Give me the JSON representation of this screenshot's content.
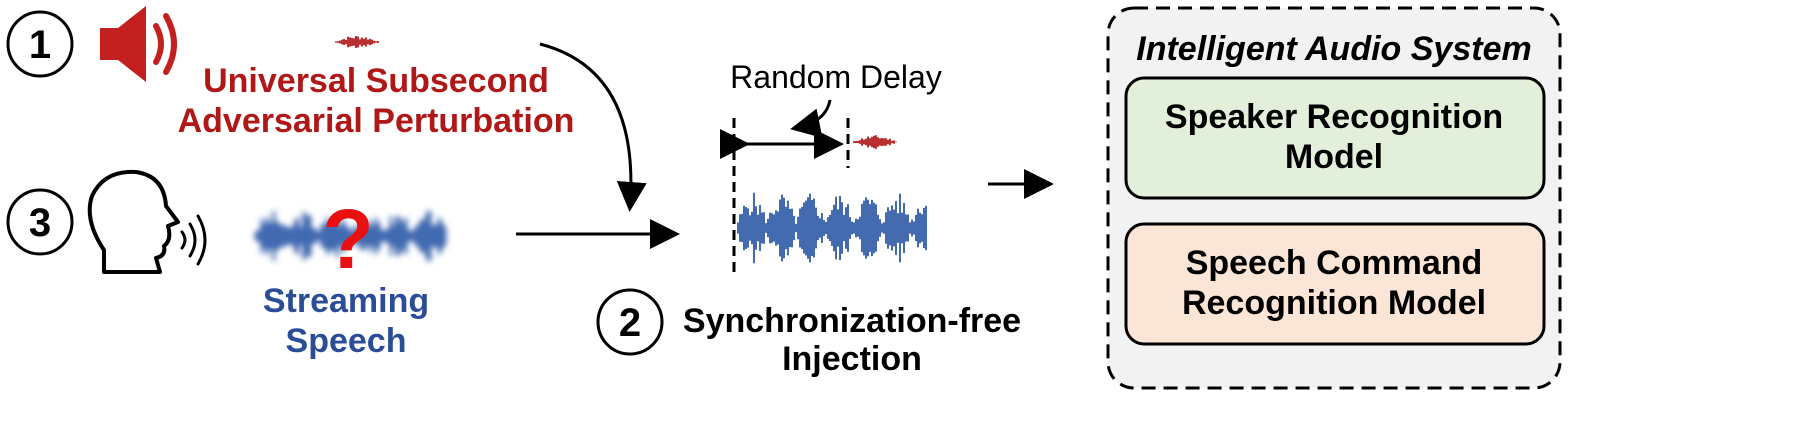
{
  "steps": {
    "step1": "1",
    "step2": "2",
    "step3": "3"
  },
  "perturbation": {
    "line1": "Universal Subsecond",
    "line2": "Adversarial Perturbation"
  },
  "speech": {
    "line1": "Streaming",
    "line2": "Speech",
    "unknown_mark": "?"
  },
  "delay_label": "Random Delay",
  "injection": {
    "line1": "Synchronization-free",
    "line2": "Injection"
  },
  "system": {
    "title": "Intelligent Audio System",
    "models": [
      {
        "line1": "Speaker Recognition",
        "line2": "Model"
      },
      {
        "line1": "Speech Command",
        "line2": "Recognition Model"
      }
    ]
  },
  "colors": {
    "red": "#b01818",
    "blue": "#2b4d98",
    "wave": "#2f5aa8",
    "green_fill": "#e2efda",
    "orange_fill": "#fbe5d6",
    "panel_fill": "#f2f2f2"
  },
  "icons": [
    "speaker-icon",
    "speaking-head-icon",
    "sound-waves-icon",
    "question-mark-icon"
  ]
}
